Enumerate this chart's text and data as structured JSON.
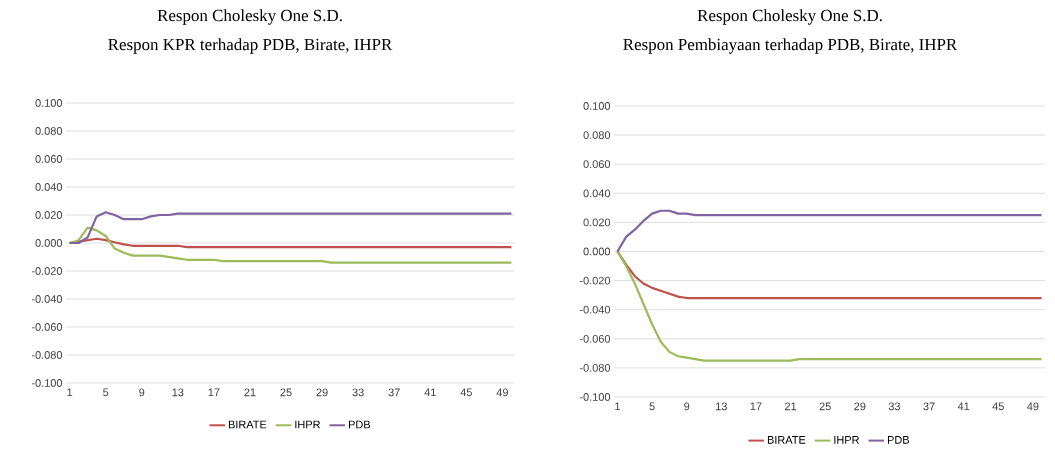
{
  "chart_data": [
    {
      "type": "line",
      "title": "Respon Cholesky One S.D.",
      "subtitle": "Respon KPR terhadap PDB, Birate, IHPR",
      "categories": [
        "1",
        null,
        null,
        null,
        "5",
        null,
        null,
        null,
        "9",
        null,
        null,
        null,
        "13",
        null,
        null,
        null,
        "17",
        null,
        null,
        null,
        "21",
        null,
        null,
        null,
        "25",
        null,
        null,
        null,
        "29",
        null,
        null,
        null,
        "33",
        null,
        null,
        null,
        "37",
        null,
        null,
        null,
        "41",
        null,
        null,
        null,
        "45",
        null,
        null,
        null,
        "49",
        null
      ],
      "series": [
        {
          "name": "BIRATE",
          "color": "#c0504d",
          "values": [
            0,
            0.001,
            0.002,
            0.003,
            0.002,
            0.0005,
            -0.001,
            -0.002,
            -0.002,
            -0.002,
            -0.002,
            -0.002,
            -0.002,
            -0.003,
            -0.003,
            -0.003,
            -0.003,
            -0.003,
            -0.003,
            -0.003,
            -0.003,
            -0.003,
            -0.003,
            -0.003,
            -0.003,
            -0.003,
            -0.003,
            -0.003,
            -0.003,
            -0.003,
            -0.003,
            -0.003,
            -0.003,
            -0.003,
            -0.003,
            -0.003,
            -0.003,
            -0.003,
            -0.003,
            -0.003,
            -0.003,
            -0.003,
            -0.003,
            -0.003,
            -0.003,
            -0.003,
            -0.003,
            -0.003,
            -0.003,
            -0.003
          ]
        },
        {
          "name": "IHPR",
          "color": "#9bbb59",
          "values": [
            0,
            0.002,
            0.011,
            0.009,
            0.005,
            -0.004,
            -0.007,
            -0.009,
            -0.009,
            -0.009,
            -0.009,
            -0.01,
            -0.011,
            -0.012,
            -0.012,
            -0.012,
            -0.012,
            -0.013,
            -0.013,
            -0.013,
            -0.013,
            -0.013,
            -0.013,
            -0.013,
            -0.013,
            -0.013,
            -0.013,
            -0.013,
            -0.013,
            -0.014,
            -0.014,
            -0.014,
            -0.014,
            -0.014,
            -0.014,
            -0.014,
            -0.014,
            -0.014,
            -0.014,
            -0.014,
            -0.014,
            -0.014,
            -0.014,
            -0.014,
            -0.014,
            -0.014,
            -0.014,
            -0.014,
            -0.014,
            -0.014
          ]
        },
        {
          "name": "PDB",
          "color": "#8064a2",
          "values": [
            0,
            0,
            0.004,
            0.019,
            0.022,
            0.02,
            0.017,
            0.017,
            0.017,
            0.019,
            0.02,
            0.02,
            0.021,
            0.021,
            0.021,
            0.021,
            0.021,
            0.021,
            0.021,
            0.021,
            0.021,
            0.021,
            0.021,
            0.021,
            0.021,
            0.021,
            0.021,
            0.021,
            0.021,
            0.021,
            0.021,
            0.021,
            0.021,
            0.021,
            0.021,
            0.021,
            0.021,
            0.021,
            0.021,
            0.021,
            0.021,
            0.021,
            0.021,
            0.021,
            0.021,
            0.021,
            0.021,
            0.021,
            0.021,
            0.021
          ]
        }
      ],
      "ylim": [
        -0.1,
        0.1
      ],
      "yticks": [
        {
          "value": -0.1,
          "label": "-0.100"
        },
        {
          "value": -0.08,
          "label": "-0.080"
        },
        {
          "value": -0.06,
          "label": "-0.060"
        },
        {
          "value": -0.04,
          "label": "-0.040"
        },
        {
          "value": -0.02,
          "label": "-0.020"
        },
        {
          "value": 0,
          "label": "0.000"
        },
        {
          "value": 0.02,
          "label": "0.020"
        },
        {
          "value": 0.04,
          "label": "0.040"
        },
        {
          "value": 0.06,
          "label": "0.060"
        },
        {
          "value": 0.08,
          "label": "0.080"
        },
        {
          "value": 0.1,
          "label": "0.100"
        }
      ],
      "grid": "y",
      "legend": "bottom",
      "marker": "none",
      "line_style": "solid"
    },
    {
      "type": "line",
      "title": "Respon Cholesky One S.D.",
      "subtitle": "Respon Pembiayaan terhadap PDB, Birate, IHPR",
      "categories": [
        "1",
        null,
        null,
        null,
        "5",
        null,
        null,
        null,
        "9",
        null,
        null,
        null,
        "13",
        null,
        null,
        null,
        "17",
        null,
        null,
        null,
        "21",
        null,
        null,
        null,
        "25",
        null,
        null,
        null,
        "29",
        null,
        null,
        null,
        "33",
        null,
        null,
        null,
        "37",
        null,
        null,
        null,
        "41",
        null,
        null,
        null,
        "45",
        null,
        null,
        null,
        "49",
        null
      ],
      "series": [
        {
          "name": "BIRATE",
          "color": "#c0504d",
          "values": [
            0,
            -0.009,
            -0.017,
            -0.022,
            -0.025,
            -0.027,
            -0.029,
            -0.031,
            -0.032,
            -0.032,
            -0.032,
            -0.032,
            -0.032,
            -0.032,
            -0.032,
            -0.032,
            -0.032,
            -0.032,
            -0.032,
            -0.032,
            -0.032,
            -0.032,
            -0.032,
            -0.032,
            -0.032,
            -0.032,
            -0.032,
            -0.032,
            -0.032,
            -0.032,
            -0.032,
            -0.032,
            -0.032,
            -0.032,
            -0.032,
            -0.032,
            -0.032,
            -0.032,
            -0.032,
            -0.032,
            -0.032,
            -0.032,
            -0.032,
            -0.032,
            -0.032,
            -0.032,
            -0.032,
            -0.032,
            -0.032,
            -0.032
          ]
        },
        {
          "name": "IHPR",
          "color": "#9bbb59",
          "values": [
            0,
            -0.01,
            -0.022,
            -0.036,
            -0.05,
            -0.062,
            -0.069,
            -0.072,
            -0.073,
            -0.074,
            -0.075,
            -0.075,
            -0.075,
            -0.075,
            -0.075,
            -0.075,
            -0.075,
            -0.075,
            -0.075,
            -0.075,
            -0.075,
            -0.074,
            -0.074,
            -0.074,
            -0.074,
            -0.074,
            -0.074,
            -0.074,
            -0.074,
            -0.074,
            -0.074,
            -0.074,
            -0.074,
            -0.074,
            -0.074,
            -0.074,
            -0.074,
            -0.074,
            -0.074,
            -0.074,
            -0.074,
            -0.074,
            -0.074,
            -0.074,
            -0.074,
            -0.074,
            -0.074,
            -0.074,
            -0.074,
            -0.074
          ]
        },
        {
          "name": "PDB",
          "color": "#8064a2",
          "values": [
            0,
            0.01,
            0.015,
            0.021,
            0.026,
            0.028,
            0.028,
            0.026,
            0.026,
            0.025,
            0.025,
            0.025,
            0.025,
            0.025,
            0.025,
            0.025,
            0.025,
            0.025,
            0.025,
            0.025,
            0.025,
            0.025,
            0.025,
            0.025,
            0.025,
            0.025,
            0.025,
            0.025,
            0.025,
            0.025,
            0.025,
            0.025,
            0.025,
            0.025,
            0.025,
            0.025,
            0.025,
            0.025,
            0.025,
            0.025,
            0.025,
            0.025,
            0.025,
            0.025,
            0.025,
            0.025,
            0.025,
            0.025,
            0.025,
            0.025
          ]
        }
      ],
      "ylim": [
        -0.1,
        0.1
      ],
      "yticks": [
        {
          "value": -0.1,
          "label": "-0.100"
        },
        {
          "value": -0.08,
          "label": "-0.080"
        },
        {
          "value": -0.06,
          "label": "-0.060"
        },
        {
          "value": -0.04,
          "label": "-0.040"
        },
        {
          "value": -0.02,
          "label": "-0.020"
        },
        {
          "value": 0,
          "label": "0.000"
        },
        {
          "value": 0.02,
          "label": "0.020"
        },
        {
          "value": 0.04,
          "label": "0.040"
        },
        {
          "value": 0.06,
          "label": "0.060"
        },
        {
          "value": 0.08,
          "label": "0.080"
        },
        {
          "value": 0.1,
          "label": "0.100"
        }
      ],
      "grid": "y",
      "legend": "bottom",
      "marker": "none",
      "line_style": "solid"
    }
  ]
}
